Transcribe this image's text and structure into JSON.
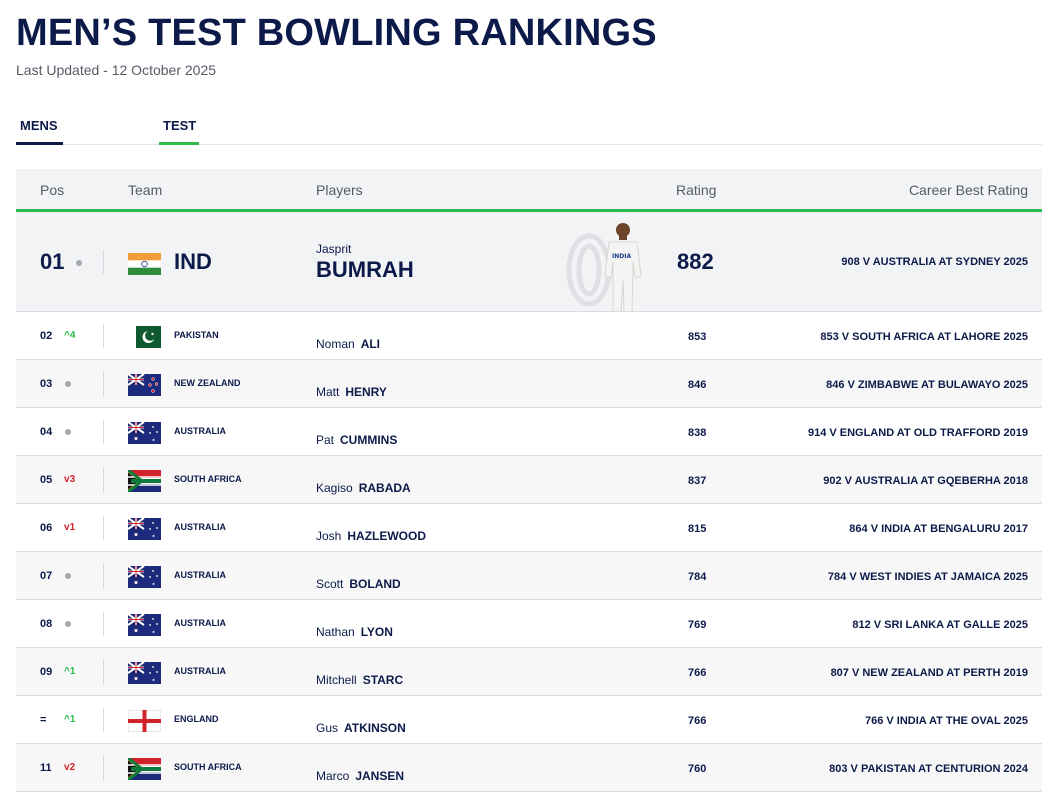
{
  "header": {
    "title": "MEN’S TEST BOWLING RANKINGS",
    "updated": "Last Updated - 12 October 2025"
  },
  "tabs": [
    {
      "label": "MENS"
    },
    {
      "label": "TEST"
    }
  ],
  "columns": {
    "pos": "Pos",
    "team": "Team",
    "players": "Players",
    "rating": "Rating",
    "best": "Career Best Rating"
  },
  "top": {
    "pos": "01",
    "team": "IND",
    "flag": "india",
    "first": "Jasprit",
    "last": "BUMRAH",
    "rating": "882",
    "best": "908 V AUSTRALIA AT SYDNEY 2025"
  },
  "rows": [
    {
      "pos": "02",
      "move": "4",
      "dir": "up",
      "team": "PAKISTAN",
      "flag": "pakistan",
      "first": "Noman",
      "last": "ALI",
      "rating": "853",
      "best": "853 V SOUTH AFRICA AT LAHORE 2025"
    },
    {
      "pos": "03",
      "move": "",
      "dir": "none",
      "team": "NEW ZEALAND",
      "flag": "newzealand",
      "first": "Matt",
      "last": "HENRY",
      "rating": "846",
      "best": "846 V ZIMBABWE AT BULAWAYO 2025"
    },
    {
      "pos": "04",
      "move": "",
      "dir": "none",
      "team": "AUSTRALIA",
      "flag": "australia",
      "first": "Pat",
      "last": "CUMMINS",
      "rating": "838",
      "best": "914 V ENGLAND AT OLD TRAFFORD 2019"
    },
    {
      "pos": "05",
      "move": "3",
      "dir": "down",
      "team": "SOUTH AFRICA",
      "flag": "southafrica",
      "first": "Kagiso",
      "last": "RABADA",
      "rating": "837",
      "best": "902 V AUSTRALIA AT GQEBERHA 2018"
    },
    {
      "pos": "06",
      "move": "1",
      "dir": "down",
      "team": "AUSTRALIA",
      "flag": "australia",
      "first": "Josh",
      "last": "HAZLEWOOD",
      "rating": "815",
      "best": "864 V INDIA AT BENGALURU 2017"
    },
    {
      "pos": "07",
      "move": "",
      "dir": "none",
      "team": "AUSTRALIA",
      "flag": "australia",
      "first": "Scott",
      "last": "BOLAND",
      "rating": "784",
      "best": "784 V WEST INDIES AT JAMAICA 2025"
    },
    {
      "pos": "08",
      "move": "",
      "dir": "none",
      "team": "AUSTRALIA",
      "flag": "australia",
      "first": "Nathan",
      "last": "LYON",
      "rating": "769",
      "best": "812 V SRI LANKA AT GALLE 2025"
    },
    {
      "pos": "09",
      "move": "1",
      "dir": "up",
      "team": "AUSTRALIA",
      "flag": "australia",
      "first": "Mitchell",
      "last": "STARC",
      "rating": "766",
      "best": "807 V NEW ZEALAND AT PERTH 2019"
    },
    {
      "pos": "=",
      "move": "1",
      "dir": "up",
      "team": "ENGLAND",
      "flag": "england",
      "first": "Gus",
      "last": "ATKINSON",
      "rating": "766",
      "best": "766 V INDIA AT THE OVAL 2025"
    },
    {
      "pos": "11",
      "move": "2",
      "dir": "down",
      "team": "SOUTH AFRICA",
      "flag": "southafrica",
      "first": "Marco",
      "last": "JANSEN",
      "rating": "760",
      "best": "803 V PAKISTAN AT CENTURION 2024"
    }
  ]
}
